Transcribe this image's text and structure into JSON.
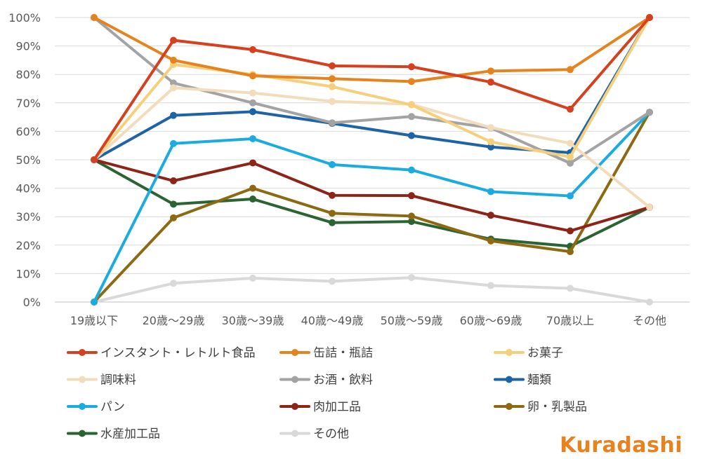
{
  "chart_data": {
    "type": "line",
    "title": "",
    "xlabel": "",
    "ylabel": "",
    "ylim": [
      0,
      100
    ],
    "y_ticks": [
      "0%",
      "10%",
      "20%",
      "30%",
      "40%",
      "50%",
      "60%",
      "70%",
      "80%",
      "90%",
      "100%"
    ],
    "categories": [
      "19歳以下",
      "20歳～29歳",
      "30歳～39歳",
      "40歳～49歳",
      "50歳～59歳",
      "60歳～69歳",
      "70歳以上",
      "その他"
    ],
    "legend_position": "bottom",
    "grid": true,
    "series": [
      {
        "name": "インスタント・レトルト食品",
        "color": "#d5401e",
        "values": [
          50,
          92,
          88.7,
          83,
          82.7,
          77.3,
          67.8,
          100
        ]
      },
      {
        "name": "缶詰・瓶詰",
        "color": "#e5831f",
        "values": [
          100,
          85,
          79.5,
          78.5,
          77.5,
          81.2,
          81.7,
          100
        ]
      },
      {
        "name": "お菓子",
        "color": "#f6cf7a",
        "values": [
          50,
          83.5,
          80,
          75.7,
          69.3,
          56.3,
          51,
          100
        ]
      },
      {
        "name": "調味料",
        "color": "#f2dcbc",
        "values": [
          50,
          75.3,
          73.5,
          70.5,
          69.5,
          61.3,
          55.8,
          33.3
        ]
      },
      {
        "name": "お酒・飲料",
        "color": "#a3a3a3",
        "values": [
          100,
          77,
          70,
          63,
          65.2,
          61.2,
          48.8,
          66.7
        ]
      },
      {
        "name": "麺類",
        "color": "#1d63a5",
        "values": [
          50,
          65.6,
          66.9,
          62.8,
          58.5,
          54.5,
          52.5,
          100
        ]
      },
      {
        "name": "パン",
        "color": "#1aace0",
        "values": [
          0,
          55.7,
          57.4,
          48.3,
          46.4,
          38.8,
          37.3,
          66.7
        ]
      },
      {
        "name": "肉加工品",
        "color": "#8d2418",
        "values": [
          50,
          42.6,
          48.9,
          37.5,
          37.4,
          30.5,
          25,
          33.3
        ]
      },
      {
        "name": "卵・乳製品",
        "color": "#8c6a12",
        "values": [
          0,
          29.6,
          40,
          31.2,
          30.2,
          21.5,
          17.7,
          66.7
        ]
      },
      {
        "name": "水産加工品",
        "color": "#2b6333",
        "values": [
          50,
          34.4,
          36.2,
          27.9,
          28.3,
          22.1,
          19.6,
          33.3
        ]
      },
      {
        "name": "その他",
        "color": "#d9d9d9",
        "values": [
          0,
          6.6,
          8.4,
          7.3,
          8.6,
          5.8,
          4.8,
          0
        ]
      }
    ]
  },
  "branding": {
    "logo_text": "Kuradashi"
  }
}
